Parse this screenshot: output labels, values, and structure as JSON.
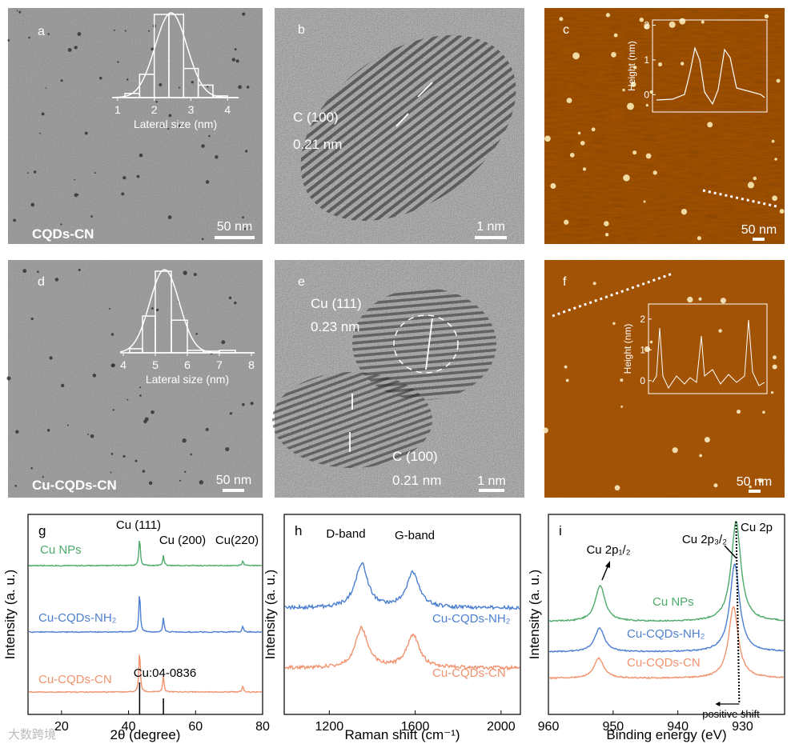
{
  "watermark": "大数跨境",
  "panels": {
    "a": {
      "label": "a",
      "caption": "CQDs-CN",
      "scale_bar": "50 nm",
      "inset": {
        "x_label": "Lateral size (nm)",
        "xlim": [
          0.85,
          4.3
        ],
        "xticks": [
          1,
          2,
          3,
          4
        ],
        "bins": [
          1.2,
          1.6,
          2.0,
          2.4,
          2.8,
          3.2,
          3.6,
          4.0
        ],
        "counts": [
          5,
          28,
          100,
          100,
          35,
          15,
          2
        ]
      }
    },
    "b": {
      "label": "b",
      "annotations": [
        "C (100)",
        "0.21 nm"
      ],
      "scale_bar": "1 nm"
    },
    "c": {
      "label": "c",
      "scale_bar": "50 nm",
      "inset": {
        "y_label": "Height (nm)",
        "ylim": [
          -0.5,
          2.15
        ],
        "yticks": [
          0,
          1,
          2
        ]
      }
    },
    "d": {
      "label": "d",
      "caption": "Cu-CQDs-CN",
      "scale_bar": "50 nm",
      "inset": {
        "x_label": "Lateral size (nm)",
        "xlim": [
          3.9,
          8.1
        ],
        "xticks": [
          4,
          5,
          6,
          7,
          8
        ],
        "bins": [
          4.2,
          4.6,
          5.0,
          5.5,
          6.0,
          6.5,
          7.0,
          7.5
        ],
        "counts": [
          5,
          45,
          100,
          40,
          3,
          2,
          3
        ]
      }
    },
    "e": {
      "label": "e",
      "annotations": [
        "Cu (111)",
        "0.23 nm",
        "C (100)",
        "0.21 nm"
      ],
      "scale_bar": "1 nm"
    },
    "f": {
      "label": "f",
      "scale_bar": "50 nm",
      "inset": {
        "y_label": "Height (nm)",
        "ylim": [
          -0.42,
          2.49
        ],
        "yticks": [
          0,
          1,
          2
        ]
      }
    }
  },
  "charts": [
    {
      "label": "g",
      "type": "line",
      "x_label": "2θ (degree)",
      "y_label": "Intensity (a. u.)",
      "xlim": [
        10,
        80
      ],
      "xticks": [
        20,
        40,
        60,
        80
      ],
      "annotations": [
        "Cu (111)",
        "Cu (200)",
        "Cu(220)",
        "Cu:04-0836"
      ],
      "reference_lines": [
        43.3,
        50.4
      ],
      "series": [
        {
          "name": "Cu NPs",
          "color": "#4daa6a",
          "peaks": [
            43.3,
            50.4,
            74.1
          ],
          "heights": [
            0.7,
            0.25,
            0.12
          ]
        },
        {
          "name": "Cu-CQDs-NH₂",
          "color": "#4c7fd0",
          "peaks": [
            43.3,
            50.4,
            74.1
          ],
          "heights": [
            1.0,
            0.35,
            0.15
          ]
        },
        {
          "name": "Cu-CQDs-CN",
          "color": "#f0936e",
          "peaks": [
            43.3,
            50.4,
            74.1
          ],
          "heights": [
            1.05,
            0.4,
            0.15
          ]
        }
      ]
    },
    {
      "label": "h",
      "type": "line",
      "x_label": "Raman shift (cm⁻¹)",
      "y_label": "Intensity (a. u.)",
      "xlim": [
        990,
        2090
      ],
      "xticks": [
        1200,
        1600,
        2000
      ],
      "annotations": [
        "D-band",
        "G-band"
      ],
      "series": [
        {
          "name": "Cu-CQDs-NH₂",
          "color": "#4c7fd0",
          "peaks": [
            1350,
            1590
          ],
          "heights": [
            1.0,
            0.8
          ]
        },
        {
          "name": "Cu-CQDs-CN",
          "color": "#f0936e",
          "peaks": [
            1350,
            1590
          ],
          "heights": [
            0.9,
            0.75
          ]
        }
      ]
    },
    {
      "label": "i",
      "type": "line",
      "x_label": "Binding energy (eV)",
      "y_label": "Intensity (a. u.)",
      "xlim": [
        960,
        923.5
      ],
      "xticks": [
        960,
        950,
        940,
        930
      ],
      "annotations": [
        "Cu 2p",
        "Cu 2p₃/₂",
        "Cu 2p₁/₂",
        "positive shift"
      ],
      "series": [
        {
          "name": "Cu NPs",
          "color": "#4daa6a",
          "peaks": [
            952.0,
            931.0
          ],
          "heights": [
            0.45,
            1.25
          ]
        },
        {
          "name": "Cu-CQDs-NH₂",
          "color": "#4c7fd0",
          "peaks": [
            952.1,
            931.2
          ],
          "heights": [
            0.3,
            1.1
          ]
        },
        {
          "name": "Cu-CQDs-CN",
          "color": "#f0936e",
          "peaks": [
            952.2,
            931.4
          ],
          "heights": [
            0.25,
            0.9
          ]
        }
      ]
    }
  ]
}
